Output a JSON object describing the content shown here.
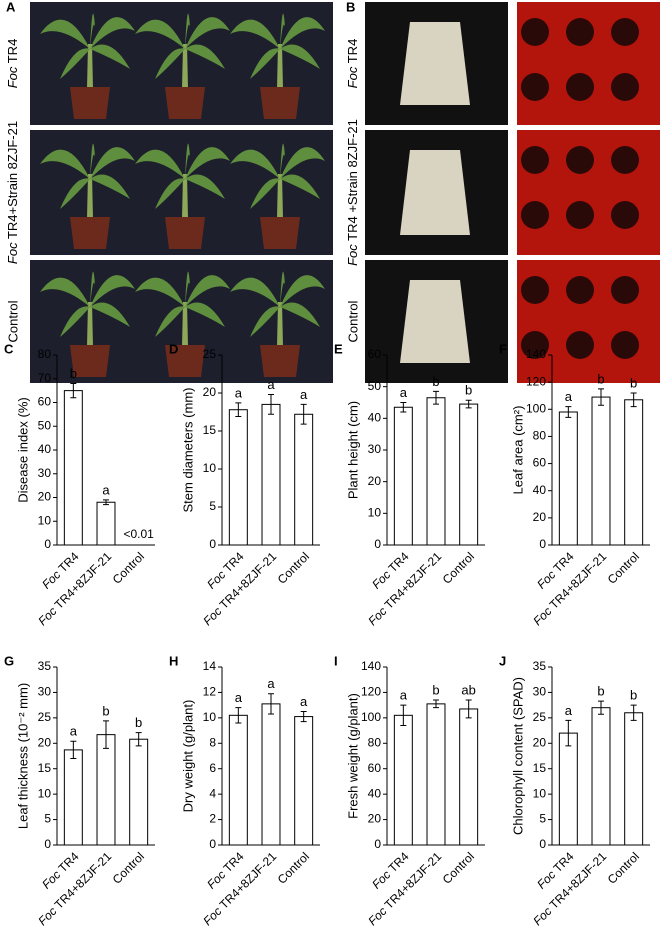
{
  "photos": [
    {
      "label": "A",
      "rows": [
        "Foc TR4",
        "Foc TR4+Strain 8ZJF-21",
        "Control"
      ]
    },
    {
      "label": "B",
      "rows": [
        "Foc TR4",
        "Foc TR4 +Strain 8ZJF-21",
        "Control"
      ]
    }
  ],
  "chart_data": [
    {
      "type": "bar",
      "panel": "C",
      "ylabel": "Disease index (%)",
      "categories": [
        "Foc TR4",
        "Foc TR4+8ZJF-21",
        "Control"
      ],
      "values": [
        65,
        18,
        0
      ],
      "errors": [
        3,
        1,
        null
      ],
      "value_labels": [
        null,
        null,
        "<0.01"
      ],
      "letters": [
        "b",
        "a",
        null
      ],
      "ylim": [
        0,
        80
      ],
      "yticks": [
        0,
        10,
        20,
        30,
        40,
        50,
        60,
        70,
        80
      ]
    },
    {
      "type": "bar",
      "panel": "D",
      "ylabel": "Stem diameters (mm)",
      "categories": [
        "Foc TR4",
        "Foc TR4+8ZJF-21",
        "Control"
      ],
      "values": [
        17.8,
        18.5,
        17.2
      ],
      "errors": [
        0.9,
        1.3,
        1.3
      ],
      "letters": [
        "a",
        "a",
        "a"
      ],
      "ylim": [
        0,
        25
      ],
      "yticks": [
        0,
        5,
        10,
        15,
        20,
        25
      ]
    },
    {
      "type": "bar",
      "panel": "E",
      "ylabel": "Plant height (cm)",
      "categories": [
        "Foc TR4",
        "Foc TR4+8ZJF-21",
        "Control"
      ],
      "values": [
        43.5,
        46.5,
        44.5
      ],
      "errors": [
        1.5,
        2,
        1.2
      ],
      "letters": [
        "a",
        "b",
        "b"
      ],
      "ylim": [
        0,
        60
      ],
      "yticks": [
        0,
        10,
        20,
        30,
        40,
        50,
        60
      ]
    },
    {
      "type": "bar",
      "panel": "F",
      "ylabel": "Leaf area (cm²)",
      "categories": [
        "Foc TR4",
        "Foc TR4+8ZJF-21",
        "Control"
      ],
      "values": [
        98,
        109,
        107
      ],
      "errors": [
        4,
        6,
        5
      ],
      "letters": [
        "a",
        "b",
        "b"
      ],
      "ylim": [
        0,
        140
      ],
      "yticks": [
        0,
        20,
        40,
        60,
        80,
        100,
        120,
        140
      ]
    },
    {
      "type": "bar",
      "panel": "G",
      "ylabel": "Leaf thickness (10⁻² mm)",
      "categories": [
        "Foc TR4",
        "Foc TR4+8ZJF-21",
        "Control"
      ],
      "values": [
        18.7,
        21.7,
        20.8
      ],
      "errors": [
        1.7,
        2.7,
        1.3
      ],
      "letters": [
        "a",
        "b",
        "b"
      ],
      "ylim": [
        0,
        35
      ],
      "yticks": [
        0,
        5,
        10,
        15,
        20,
        25,
        30,
        35
      ]
    },
    {
      "type": "bar",
      "panel": "H",
      "ylabel": "Dry weight (g/plant)",
      "categories": [
        "Foc TR4",
        "Foc TR4+8ZJF-21",
        "Control"
      ],
      "values": [
        10.2,
        11.1,
        10.1
      ],
      "errors": [
        0.6,
        0.8,
        0.4
      ],
      "letters": [
        "a",
        "a",
        "a"
      ],
      "ylim": [
        0,
        14
      ],
      "yticks": [
        0,
        2,
        4,
        6,
        8,
        10,
        12,
        14
      ]
    },
    {
      "type": "bar",
      "panel": "I",
      "ylabel": "Fresh weight (g/plant)",
      "categories": [
        "Foc TR4",
        "Foc TR4+8ZJF-21",
        "Control"
      ],
      "values": [
        102,
        111,
        107
      ],
      "errors": [
        8,
        3,
        7
      ],
      "letters": [
        "a",
        "b",
        "ab"
      ],
      "ylim": [
        0,
        140
      ],
      "yticks": [
        0,
        20,
        40,
        60,
        80,
        100,
        120,
        140
      ]
    },
    {
      "type": "bar",
      "panel": "J",
      "ylabel": "Chlorophyll content (SPAD)",
      "categories": [
        "Foc TR4",
        "Foc TR4+8ZJF-21",
        "Control"
      ],
      "values": [
        22,
        27,
        26
      ],
      "errors": [
        2.5,
        1.3,
        1.5
      ],
      "letters": [
        "a",
        "b",
        "b"
      ],
      "ylim": [
        0,
        35
      ],
      "yticks": [
        0,
        5,
        10,
        15,
        20,
        25,
        30,
        35
      ]
    }
  ]
}
